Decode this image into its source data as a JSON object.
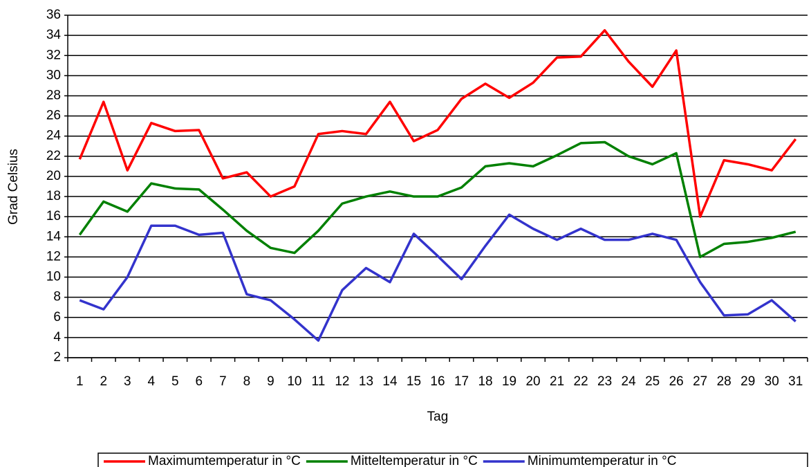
{
  "chart_data": {
    "type": "line",
    "x_label": "Tag",
    "y_label": "Grad Celsius",
    "categories": [
      "1",
      "2",
      "3",
      "4",
      "5",
      "6",
      "7",
      "8",
      "9",
      "10",
      "11",
      "12",
      "13",
      "14",
      "15",
      "16",
      "17",
      "18",
      "19",
      "20",
      "21",
      "22",
      "23",
      "24",
      "25",
      "26",
      "27",
      "28",
      "29",
      "30",
      "31"
    ],
    "series": [
      {
        "name": "Maximumtemperatur in °C",
        "color": "#ff0000",
        "values": [
          21.7,
          27.4,
          20.6,
          25.3,
          24.5,
          24.6,
          19.8,
          20.4,
          18.0,
          19.0,
          24.2,
          24.5,
          24.2,
          27.4,
          23.5,
          24.6,
          27.7,
          29.2,
          27.8,
          29.3,
          31.8,
          31.9,
          34.5,
          31.4,
          28.9,
          32.5,
          16.0,
          21.6,
          21.2,
          20.6,
          23.7
        ]
      },
      {
        "name": "Mitteltemperatur in °C",
        "color": "#008000",
        "values": [
          14.2,
          17.5,
          16.5,
          19.3,
          18.8,
          18.7,
          16.7,
          14.6,
          12.9,
          12.4,
          14.6,
          17.3,
          18.0,
          18.5,
          18.0,
          18.0,
          18.9,
          21.0,
          21.3,
          21.0,
          22.1,
          23.3,
          23.4,
          22.0,
          21.2,
          22.3,
          12.0,
          13.3,
          13.5,
          13.9,
          14.5
        ]
      },
      {
        "name": "Minimumtemperatur in °C",
        "color": "#3333cc",
        "values": [
          7.7,
          6.8,
          10.0,
          15.1,
          15.1,
          14.2,
          14.4,
          8.3,
          7.7,
          5.8,
          3.7,
          8.7,
          10.9,
          9.5,
          14.3,
          12.1,
          9.8,
          13.1,
          16.2,
          14.8,
          13.7,
          14.8,
          13.7,
          13.7,
          14.3,
          13.7,
          9.5,
          6.2,
          6.3,
          7.7,
          5.6
        ]
      }
    ],
    "ylim": [
      2,
      36
    ],
    "yticks": [
      2,
      4,
      6,
      8,
      10,
      12,
      14,
      16,
      18,
      20,
      22,
      24,
      26,
      28,
      30,
      32,
      34,
      36
    ],
    "grid": true,
    "legend": "bottom"
  }
}
